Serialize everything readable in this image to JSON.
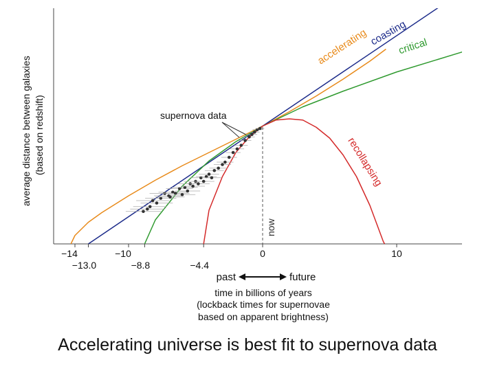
{
  "chart_data": {
    "type": "line",
    "ylabel_line1": "average distance between galaxies",
    "ylabel_line2": "(based on redshift)",
    "xlabel_lines": [
      "time in billions of years",
      "(lockback times for supernovae",
      "based on apparent brightness)"
    ],
    "past_label": "past",
    "future_label": "future",
    "now_label": "now",
    "annotation_supernova": "supernova data",
    "xlim": [
      -16.2,
      15.0
    ],
    "ylim": [
      0,
      1.55
    ],
    "ticks_upper": [
      {
        "x": -14,
        "label": "−14"
      },
      {
        "x": -10,
        "label": "−10"
      },
      {
        "x": 0,
        "label": "0"
      },
      {
        "x": 10,
        "label": "10"
      }
    ],
    "ticks_lower": [
      {
        "x": -13.0,
        "label": "−13.0"
      },
      {
        "x": -8.8,
        "label": "−8.8"
      },
      {
        "x": -4.4,
        "label": "−4.4"
      }
    ],
    "series": [
      {
        "name": "accelerating",
        "color": "#e88a1a",
        "points": [
          [
            -14.3,
            0
          ],
          [
            -14,
            0.07
          ],
          [
            -13,
            0.18
          ],
          [
            -12,
            0.26
          ],
          [
            -10,
            0.4
          ],
          [
            -8,
            0.53
          ],
          [
            -6,
            0.65
          ],
          [
            -4,
            0.76
          ],
          [
            -2,
            0.87
          ],
          [
            0,
            0.98
          ],
          [
            2,
            1.1
          ],
          [
            4,
            1.23
          ],
          [
            6,
            1.37
          ],
          [
            8,
            1.52
          ],
          [
            9.2,
            1.62
          ]
        ]
      },
      {
        "name": "coasting",
        "color": "#1c2b8a",
        "points": [
          [
            -13.0,
            0
          ],
          [
            0,
            0.98
          ],
          [
            14.5,
            2.07
          ]
        ]
      },
      {
        "name": "critical",
        "color": "#2f9a2f",
        "points": [
          [
            -8.8,
            0
          ],
          [
            -8,
            0.2
          ],
          [
            -6,
            0.48
          ],
          [
            -4,
            0.69
          ],
          [
            -2,
            0.85
          ],
          [
            0,
            0.98
          ],
          [
            3,
            1.14
          ],
          [
            6,
            1.27
          ],
          [
            10,
            1.43
          ],
          [
            15,
            1.6
          ]
        ]
      },
      {
        "name": "recollapsing",
        "color": "#d42a2a",
        "points": [
          [
            -4.4,
            0
          ],
          [
            -4,
            0.28
          ],
          [
            -3,
            0.56
          ],
          [
            -2,
            0.76
          ],
          [
            -1,
            0.89
          ],
          [
            0,
            0.98
          ],
          [
            1,
            1.03
          ],
          [
            2,
            1.04
          ],
          [
            3,
            1.03
          ],
          [
            4,
            0.97
          ],
          [
            5,
            0.88
          ],
          [
            6,
            0.74
          ],
          [
            7,
            0.56
          ],
          [
            8,
            0.32
          ],
          [
            9,
            0.02
          ],
          [
            9.1,
            0
          ]
        ]
      }
    ],
    "supernova_points": [
      [
        -8.9,
        0.27
      ],
      [
        -8.6,
        0.29
      ],
      [
        -8.4,
        0.31
      ],
      [
        -8.2,
        0.36
      ],
      [
        -7.9,
        0.34
      ],
      [
        -7.6,
        0.38
      ],
      [
        -7.3,
        0.42
      ],
      [
        -7.0,
        0.4
      ],
      [
        -6.9,
        0.39
      ],
      [
        -6.7,
        0.43
      ],
      [
        -6.5,
        0.42
      ],
      [
        -6.2,
        0.46
      ],
      [
        -6.0,
        0.41
      ],
      [
        -5.8,
        0.47
      ],
      [
        -5.6,
        0.44
      ],
      [
        -5.4,
        0.5
      ],
      [
        -5.2,
        0.48
      ],
      [
        -5.0,
        0.52
      ],
      [
        -4.8,
        0.5
      ],
      [
        -4.6,
        0.55
      ],
      [
        -4.4,
        0.52
      ],
      [
        -4.2,
        0.56
      ],
      [
        -4.0,
        0.58
      ],
      [
        -3.8,
        0.55
      ],
      [
        -3.6,
        0.61
      ],
      [
        -3.3,
        0.63
      ],
      [
        -3.0,
        0.66
      ],
      [
        -2.8,
        0.68
      ],
      [
        -2.5,
        0.72
      ],
      [
        -2.2,
        0.76
      ],
      [
        -1.9,
        0.79
      ],
      [
        -1.6,
        0.82
      ],
      [
        -1.3,
        0.86
      ],
      [
        -1.0,
        0.89
      ],
      [
        -0.8,
        0.91
      ],
      [
        -0.6,
        0.93
      ],
      [
        -0.4,
        0.95
      ],
      [
        -0.2,
        0.96
      ]
    ]
  },
  "caption": "Accelerating universe is best fit to supernova data"
}
